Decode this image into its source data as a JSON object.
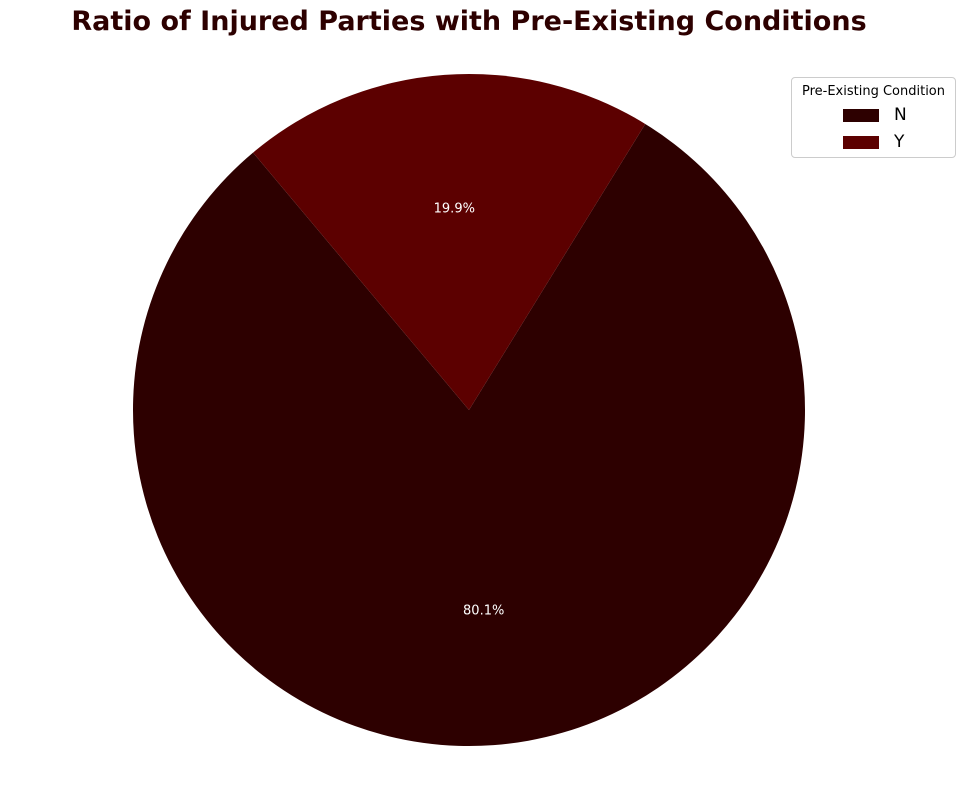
{
  "chart_data": {
    "type": "pie",
    "title": "Ratio of Injured Parties with Pre-Existing Conditions",
    "categories": [
      "N",
      "Y"
    ],
    "values": [
      80.1,
      19.9
    ],
    "labels": [
      "80.1%",
      "19.9%"
    ],
    "colors": [
      "#2d0000",
      "#5c0000"
    ],
    "legend": {
      "title": "Pre-Existing Condition",
      "placement": "top-right",
      "entries": [
        "N",
        "Y"
      ]
    }
  }
}
